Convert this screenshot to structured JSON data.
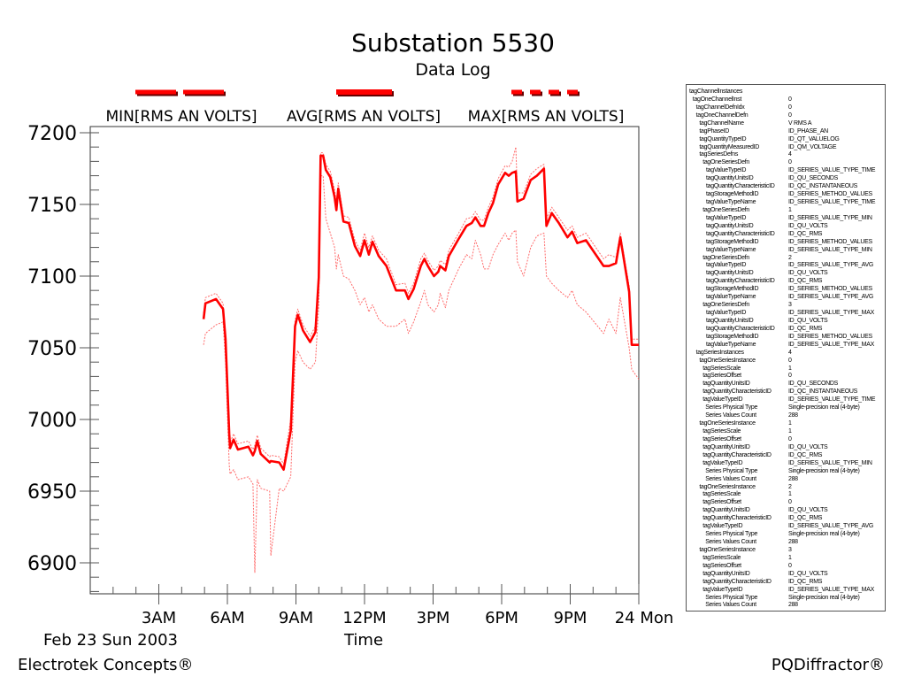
{
  "chart_data": {
    "type": "line",
    "title": "Substation 5530",
    "subtitle": "Data Log",
    "xlabel": "Time",
    "date_label": "Feb 23 Sun 2003",
    "ylabel": "",
    "xlim": [
      0,
      24
    ],
    "ylim": [
      6878.4,
      7204.3
    ],
    "y_ticks": [
      6900,
      6950,
      7000,
      7050,
      7100,
      7150,
      7200
    ],
    "y_tick_labels": [
      "6900",
      "6950",
      "7000",
      "7050",
      "7100",
      "7150",
      "7200"
    ],
    "x_ticks": [
      3,
      6,
      9,
      12,
      15,
      18,
      21,
      24
    ],
    "x_tick_labels": [
      "3AM",
      "6AM",
      "9AM",
      "12PM",
      "3PM",
      "6PM",
      "9PM",
      "24 Mon"
    ],
    "grid": false,
    "legend_position": "top",
    "color": "#ff0000",
    "x": [
      4.96,
      5.04,
      5.5,
      5.81,
      5.92,
      6.08,
      6.12,
      6.27,
      6.46,
      6.92,
      7.12,
      7.2,
      7.31,
      7.46,
      7.85,
      7.9,
      8.27,
      8.46,
      8.77,
      8.96,
      9.08,
      9.31,
      9.62,
      9.85,
      10.0,
      10.08,
      10.19,
      10.31,
      10.5,
      10.69,
      10.77,
      10.85,
      11.08,
      11.31,
      11.58,
      11.81,
      12.0,
      12.19,
      12.35,
      12.62,
      12.96,
      13.38,
      13.77,
      13.92,
      14.15,
      14.46,
      14.62,
      14.77,
      15.04,
      15.23,
      15.31,
      15.54,
      15.69,
      16.12,
      16.46,
      16.69,
      16.85,
      17.08,
      17.23,
      17.42,
      17.62,
      17.85,
      18.15,
      18.31,
      18.46,
      18.62,
      18.69,
      18.96,
      19.27,
      19.54,
      19.85,
      19.96,
      20.19,
      20.5,
      20.88,
      21.08,
      21.31,
      21.69,
      22.46,
      22.69,
      23.0,
      23.19,
      23.58,
      23.69,
      24.0
    ],
    "series": [
      {
        "name": "MIN[RMS AN VOLTS]",
        "style": "long-dash",
        "values": [
          7052,
          7060,
          7066,
          7068,
          7040,
          6968,
          6962,
          6965,
          6958,
          6960,
          6955,
          6893,
          6958,
          6952,
          6950,
          6905,
          6952,
          6950,
          6960,
          7040,
          7048,
          7040,
          7035,
          7040,
          7080,
          7170,
          7170,
          7140,
          7130,
          7120,
          7105,
          7115,
          7100,
          7098,
          7090,
          7080,
          7085,
          7075,
          7080,
          7070,
          7065,
          7065,
          7070,
          7060,
          7068,
          7082,
          7090,
          7080,
          7075,
          7080,
          7088,
          7078,
          7090,
          7105,
          7115,
          7112,
          7125,
          7115,
          7105,
          7105,
          7115,
          7122,
          7130,
          7125,
          7130,
          7132,
          7110,
          7100,
          7120,
          7128,
          7130,
          7100,
          7095,
          7090,
          7085,
          7090,
          7080,
          7075,
          7060,
          7070,
          7060,
          7085,
          7050,
          7035,
          7028
        ]
      },
      {
        "name": "AVG[RMS AN VOLTS]",
        "style": "solid",
        "values": [
          7070,
          7081,
          7084,
          7077,
          7056,
          6990,
          6980,
          6986,
          6979,
          6981,
          6975,
          6978,
          6985,
          6976,
          6970,
          6971,
          6970,
          6965,
          6992,
          7065,
          7073,
          7062,
          7054,
          7061,
          7099,
          7184,
          7184,
          7174,
          7169,
          7155,
          7146,
          7161,
          7138,
          7137,
          7121,
          7114,
          7125,
          7115,
          7124,
          7114,
          7107,
          7090,
          7090,
          7084,
          7091,
          7107,
          7112,
          7107,
          7100,
          7103,
          7107,
          7104,
          7114,
          7126,
          7135,
          7137,
          7141,
          7135,
          7135,
          7144,
          7151,
          7164,
          7172,
          7170,
          7172,
          7173,
          7152,
          7154,
          7167,
          7170,
          7175,
          7135,
          7144,
          7137,
          7127,
          7131,
          7123,
          7125,
          7107,
          7107,
          7109,
          7127,
          7089,
          7052,
          7052
        ]
      },
      {
        "name": "MAX[RMS AN VOLTS]",
        "style": "short-dash",
        "values": [
          7074,
          7085,
          7088,
          7081,
          7060,
          6994,
          6984,
          6990,
          6983,
          6985,
          6979,
          6982,
          6989,
          6980,
          6974,
          6975,
          6974,
          6969,
          7000,
          7069,
          7077,
          7066,
          7058,
          7065,
          7105,
          7186,
          7186,
          7178,
          7173,
          7160,
          7152,
          7165,
          7142,
          7141,
          7125,
          7118,
          7130,
          7120,
          7128,
          7118,
          7112,
          7094,
          7095,
          7088,
          7095,
          7112,
          7116,
          7111,
          7104,
          7107,
          7111,
          7108,
          7118,
          7130,
          7140,
          7141,
          7145,
          7139,
          7139,
          7148,
          7155,
          7168,
          7177,
          7176,
          7180,
          7190,
          7158,
          7158,
          7171,
          7175,
          7178,
          7140,
          7148,
          7141,
          7132,
          7135,
          7127,
          7130,
          7112,
          7115,
          7113,
          7130,
          7093,
          7056,
          7056
        ]
      }
    ]
  },
  "footer": {
    "left": "Electrotek Concepts®",
    "right": "PQDiffractor®"
  },
  "info_panel": {
    "rows": [
      [
        0,
        "tagChannelInstances",
        ""
      ],
      [
        1,
        "tagOneChannelInst",
        "0"
      ],
      [
        2,
        "tagChannelDefnIdx",
        "0"
      ],
      [
        2,
        "tagOneChannelDefn",
        "0"
      ],
      [
        3,
        "tagChannelName",
        "V RMS A"
      ],
      [
        3,
        "tagPhaseID",
        "ID_PHASE_AN"
      ],
      [
        3,
        "tagQuantityTypeID",
        "ID_QT_VALUELOG"
      ],
      [
        3,
        "tagQuantityMeasuredID",
        "ID_QM_VOLTAGE"
      ],
      [
        3,
        "tagSeriesDefns",
        "4"
      ],
      [
        4,
        "tagOneSeriesDefn",
        "0"
      ],
      [
        5,
        "tagValueTypeID",
        "ID_SERIES_VALUE_TYPE_TIME"
      ],
      [
        5,
        "tagQuantityUnitsID",
        "ID_QU_SECONDS"
      ],
      [
        5,
        "tagQuantityCharacteristicID",
        "ID_QC_INSTANTANEOUS"
      ],
      [
        5,
        "tagStorageMethodID",
        "ID_SERIES_METHOD_VALUES"
      ],
      [
        5,
        "tagValueTypeName",
        "ID_SERIES_VALUE_TYPE_TIME"
      ],
      [
        4,
        "tagOneSeriesDefn",
        "1"
      ],
      [
        5,
        "tagValueTypeID",
        "ID_SERIES_VALUE_TYPE_MIN"
      ],
      [
        5,
        "tagQuantityUnitsID",
        "ID_QU_VOLTS"
      ],
      [
        5,
        "tagQuantityCharacteristicID",
        "ID_QC_RMS"
      ],
      [
        5,
        "tagStorageMethodID",
        "ID_SERIES_METHOD_VALUES"
      ],
      [
        5,
        "tagValueTypeName",
        "ID_SERIES_VALUE_TYPE_MIN"
      ],
      [
        4,
        "tagOneSeriesDefn",
        "2"
      ],
      [
        5,
        "tagValueTypeID",
        "ID_SERIES_VALUE_TYPE_AVG"
      ],
      [
        5,
        "tagQuantityUnitsID",
        "ID_QU_VOLTS"
      ],
      [
        5,
        "tagQuantityCharacteristicID",
        "ID_QC_RMS"
      ],
      [
        5,
        "tagStorageMethodID",
        "ID_SERIES_METHOD_VALUES"
      ],
      [
        5,
        "tagValueTypeName",
        "ID_SERIES_VALUE_TYPE_AVG"
      ],
      [
        4,
        "tagOneSeriesDefn",
        "3"
      ],
      [
        5,
        "tagValueTypeID",
        "ID_SERIES_VALUE_TYPE_MAX"
      ],
      [
        5,
        "tagQuantityUnitsID",
        "ID_QU_VOLTS"
      ],
      [
        5,
        "tagQuantityCharacteristicID",
        "ID_QC_RMS"
      ],
      [
        5,
        "tagStorageMethodID",
        "ID_SERIES_METHOD_VALUES"
      ],
      [
        5,
        "tagValueTypeName",
        "ID_SERIES_VALUE_TYPE_MAX"
      ],
      [
        2,
        "tagSeriesInstances",
        "4"
      ],
      [
        3,
        "tagOneSeriesInstance",
        "0"
      ],
      [
        4,
        "tagSeriesScale",
        "1"
      ],
      [
        4,
        "tagSeriesOffset",
        "0"
      ],
      [
        4,
        "tagQuantityUnitsID",
        "ID_QU_SECONDS"
      ],
      [
        4,
        "tagQuantityCharacteristicID",
        "ID_QC_INSTANTANEOUS"
      ],
      [
        4,
        "tagValueTypeID",
        "ID_SERIES_VALUE_TYPE_TIME"
      ],
      [
        4,
        "Series Physical Type",
        "Single-precision real (4-byte)"
      ],
      [
        4,
        "Series Values Count",
        "288"
      ],
      [
        3,
        "tagOneSeriesInstance",
        "1"
      ],
      [
        4,
        "tagSeriesScale",
        "1"
      ],
      [
        4,
        "tagSeriesOffset",
        "0"
      ],
      [
        4,
        "tagQuantityUnitsID",
        "ID_QU_VOLTS"
      ],
      [
        4,
        "tagQuantityCharacteristicID",
        "ID_QC_RMS"
      ],
      [
        4,
        "tagValueTypeID",
        "ID_SERIES_VALUE_TYPE_MIN"
      ],
      [
        4,
        "Series Physical Type",
        "Single-precision real (4-byte)"
      ],
      [
        4,
        "Series Values Count",
        "288"
      ],
      [
        3,
        "tagOneSeriesInstance",
        "2"
      ],
      [
        4,
        "tagSeriesScale",
        "1"
      ],
      [
        4,
        "tagSeriesOffset",
        "0"
      ],
      [
        4,
        "tagQuantityUnitsID",
        "ID_QU_VOLTS"
      ],
      [
        4,
        "tagQuantityCharacteristicID",
        "ID_QC_RMS"
      ],
      [
        4,
        "tagValueTypeID",
        "ID_SERIES_VALUE_TYPE_AVG"
      ],
      [
        4,
        "Series Physical Type",
        "Single-precision real (4-byte)"
      ],
      [
        4,
        "Series Values Count",
        "288"
      ],
      [
        3,
        "tagOneSeriesInstance",
        "3"
      ],
      [
        4,
        "tagSeriesScale",
        "1"
      ],
      [
        4,
        "tagSeriesOffset",
        "0"
      ],
      [
        4,
        "tagQuantityUnitsID",
        "ID_QU_VOLTS"
      ],
      [
        4,
        "tagQuantityCharacteristicID",
        "ID_QC_RMS"
      ],
      [
        4,
        "tagValueTypeID",
        "ID_SERIES_VALUE_TYPE_MAX"
      ],
      [
        4,
        "Series Physical Type",
        "Single-precision real (4-byte)"
      ],
      [
        4,
        "Series Values Count",
        "288"
      ]
    ]
  }
}
